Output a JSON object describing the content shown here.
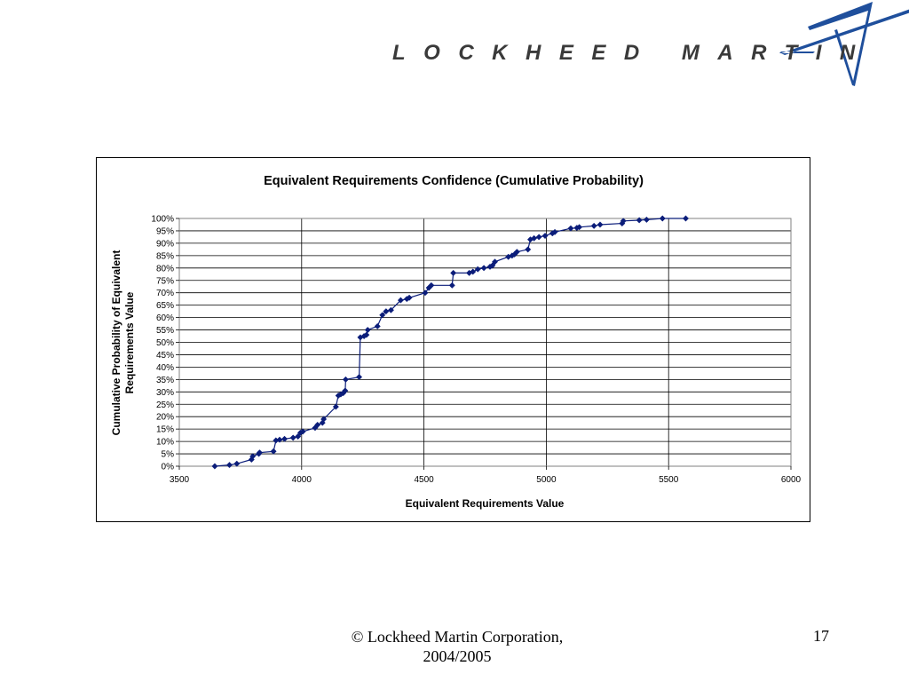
{
  "brand": {
    "logo_text": "LOCKHEED MARTIN",
    "color": "#3a3a3a",
    "star_color": "#1f4f9c"
  },
  "footer": {
    "copyright_line1": "© Lockheed Martin Corporation,",
    "copyright_line2": "2004/2005",
    "page_number": "17"
  },
  "chart_data": {
    "type": "line",
    "title": "Equivalent Requirements Confidence (Cumulative Probability)",
    "xlabel": "Equivalent Requirements Value",
    "ylabel": "Cumulative Probability of Equivalent Requirements Value",
    "ylabel_lines": [
      "Cumulative Probability of Equivalent",
      "Requirements Value"
    ],
    "xlim": [
      3500,
      6000
    ],
    "ylim": [
      0,
      1
    ],
    "x_ticks": [
      3500,
      4000,
      4500,
      5000,
      5500,
      6000
    ],
    "y_ticks": [
      "0%",
      "5%",
      "10%",
      "15%",
      "20%",
      "25%",
      "30%",
      "35%",
      "40%",
      "45%",
      "50%",
      "55%",
      "60%",
      "65%",
      "70%",
      "75%",
      "80%",
      "85%",
      "90%",
      "95%",
      "100%"
    ],
    "grid": "horizontal and vertical major gridlines",
    "marker": "diamond",
    "series_color": "#0b1d7a",
    "series": [
      {
        "points": [
          [
            3645,
            0.0
          ],
          [
            3705,
            0.005
          ],
          [
            3735,
            0.01
          ],
          [
            3795,
            0.027
          ],
          [
            3800,
            0.04
          ],
          [
            3825,
            0.05
          ],
          [
            3828,
            0.055
          ],
          [
            3885,
            0.06
          ],
          [
            3895,
            0.104
          ],
          [
            3910,
            0.107
          ],
          [
            3930,
            0.11
          ],
          [
            3965,
            0.115
          ],
          [
            3985,
            0.12
          ],
          [
            3995,
            0.135
          ],
          [
            4005,
            0.14
          ],
          [
            4055,
            0.155
          ],
          [
            4065,
            0.167
          ],
          [
            4085,
            0.175
          ],
          [
            4090,
            0.19
          ],
          [
            4140,
            0.24
          ],
          [
            4150,
            0.285
          ],
          [
            4160,
            0.29
          ],
          [
            4170,
            0.295
          ],
          [
            4178,
            0.305
          ],
          [
            4180,
            0.35
          ],
          [
            4235,
            0.36
          ],
          [
            4240,
            0.52
          ],
          [
            4255,
            0.525
          ],
          [
            4265,
            0.53
          ],
          [
            4270,
            0.55
          ],
          [
            4310,
            0.565
          ],
          [
            4330,
            0.61
          ],
          [
            4345,
            0.625
          ],
          [
            4365,
            0.63
          ],
          [
            4405,
            0.67
          ],
          [
            4430,
            0.675
          ],
          [
            4440,
            0.68
          ],
          [
            4505,
            0.7
          ],
          [
            4520,
            0.72
          ],
          [
            4530,
            0.73
          ],
          [
            4615,
            0.73
          ],
          [
            4620,
            0.78
          ],
          [
            4685,
            0.78
          ],
          [
            4700,
            0.785
          ],
          [
            4720,
            0.795
          ],
          [
            4745,
            0.8
          ],
          [
            4770,
            0.805
          ],
          [
            4780,
            0.81
          ],
          [
            4790,
            0.825
          ],
          [
            4845,
            0.845
          ],
          [
            4860,
            0.85
          ],
          [
            4870,
            0.855
          ],
          [
            4880,
            0.865
          ],
          [
            4925,
            0.875
          ],
          [
            4935,
            0.915
          ],
          [
            4950,
            0.92
          ],
          [
            4970,
            0.925
          ],
          [
            4995,
            0.93
          ],
          [
            5025,
            0.94
          ],
          [
            5035,
            0.945
          ],
          [
            5100,
            0.96
          ],
          [
            5125,
            0.962
          ],
          [
            5135,
            0.965
          ],
          [
            5195,
            0.97
          ],
          [
            5220,
            0.975
          ],
          [
            5310,
            0.98
          ],
          [
            5315,
            0.99
          ],
          [
            5380,
            0.993
          ],
          [
            5410,
            0.995
          ],
          [
            5475,
            1.0
          ],
          [
            5570,
            1.0
          ]
        ]
      }
    ]
  }
}
